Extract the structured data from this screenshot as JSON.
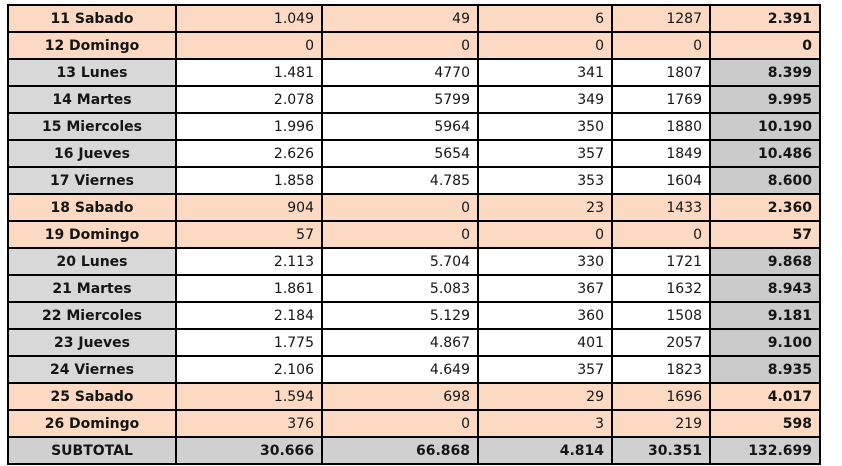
{
  "table": {
    "rows": [
      {
        "day": "11 Sabado",
        "type": "weekend",
        "values": [
          "1.049",
          "49",
          "6",
          "1287",
          "2.391"
        ]
      },
      {
        "day": "12 Domingo",
        "type": "weekend",
        "values": [
          "0",
          "0",
          "0",
          "0",
          "0"
        ]
      },
      {
        "day": "13 Lunes",
        "type": "weekday",
        "values": [
          "1.481",
          "4770",
          "341",
          "1807",
          "8.399"
        ]
      },
      {
        "day": "14 Martes",
        "type": "weekday",
        "values": [
          "2.078",
          "5799",
          "349",
          "1769",
          "9.995"
        ]
      },
      {
        "day": "15 Miercoles",
        "type": "weekday",
        "values": [
          "1.996",
          "5964",
          "350",
          "1880",
          "10.190"
        ]
      },
      {
        "day": "16 Jueves",
        "type": "weekday",
        "values": [
          "2.626",
          "5654",
          "357",
          "1849",
          "10.486"
        ]
      },
      {
        "day": "17 Viernes",
        "type": "weekday",
        "values": [
          "1.858",
          "4.785",
          "353",
          "1604",
          "8.600"
        ]
      },
      {
        "day": "18 Sabado",
        "type": "weekend",
        "values": [
          "904",
          "0",
          "23",
          "1433",
          "2.360"
        ]
      },
      {
        "day": "19 Domingo",
        "type": "weekend",
        "values": [
          "57",
          "0",
          "0",
          "0",
          "57"
        ]
      },
      {
        "day": "20 Lunes",
        "type": "weekday",
        "values": [
          "2.113",
          "5.704",
          "330",
          "1721",
          "9.868"
        ]
      },
      {
        "day": "21 Martes",
        "type": "weekday",
        "values": [
          "1.861",
          "5.083",
          "367",
          "1632",
          "8.943"
        ]
      },
      {
        "day": "22 Miercoles",
        "type": "weekday",
        "values": [
          "2.184",
          "5.129",
          "360",
          "1508",
          "9.181"
        ]
      },
      {
        "day": "23 Jueves",
        "type": "weekday",
        "values": [
          "1.775",
          "4.867",
          "401",
          "2057",
          "9.100"
        ]
      },
      {
        "day": "24 Viernes",
        "type": "weekday",
        "values": [
          "2.106",
          "4.649",
          "357",
          "1823",
          "8.935"
        ]
      },
      {
        "day": "25 Sabado",
        "type": "weekend",
        "values": [
          "1.594",
          "698",
          "29",
          "1696",
          "4.017"
        ]
      },
      {
        "day": "26 Domingo",
        "type": "weekend",
        "values": [
          "376",
          "0",
          "3",
          "219",
          "598"
        ]
      },
      {
        "day": "SUBTOTAL",
        "type": "subtotal",
        "values": [
          "30.666",
          "66.868",
          "4.814",
          "30.351",
          "132.699"
        ]
      }
    ],
    "colors": {
      "weekend_bg": "#fcd9c3",
      "label_bg": "#d8d8d8",
      "total_bg": "#cbcbcb",
      "subtotal_bg": "#d0d0d0",
      "border": "#000000",
      "text": "#151515"
    }
  }
}
